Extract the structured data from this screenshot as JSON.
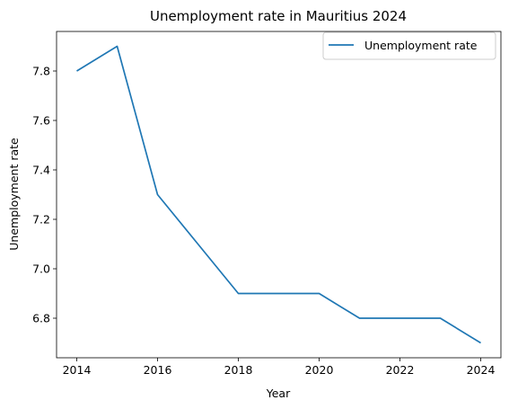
{
  "chart_data": {
    "type": "line",
    "title": "Unemployment rate in Mauritius 2024",
    "xlabel": "Year",
    "ylabel": "Unemployment rate",
    "x": [
      2014,
      2015,
      2016,
      2017,
      2018,
      2019,
      2020,
      2021,
      2022,
      2023,
      2024
    ],
    "series": [
      {
        "name": "Unemployment rate",
        "color": "#1f77b4",
        "values": [
          7.8,
          7.9,
          7.3,
          7.1,
          6.9,
          6.9,
          6.9,
          6.8,
          6.8,
          6.8,
          6.7
        ]
      }
    ],
    "xticks": [
      2014,
      2016,
      2018,
      2020,
      2022,
      2024
    ],
    "xtick_labels": [
      "2014",
      "2016",
      "2018",
      "2020",
      "2022",
      "2024"
    ],
    "yticks": [
      6.8,
      7.0,
      7.2,
      7.4,
      7.6,
      7.8
    ],
    "ytick_labels": [
      "6.8",
      "7.0",
      "7.2",
      "7.4",
      "7.6",
      "7.8"
    ],
    "xlim": [
      2013.5,
      2024.5
    ],
    "ylim": [
      6.64,
      7.96
    ],
    "grid": false,
    "legend_position": "top-right"
  }
}
